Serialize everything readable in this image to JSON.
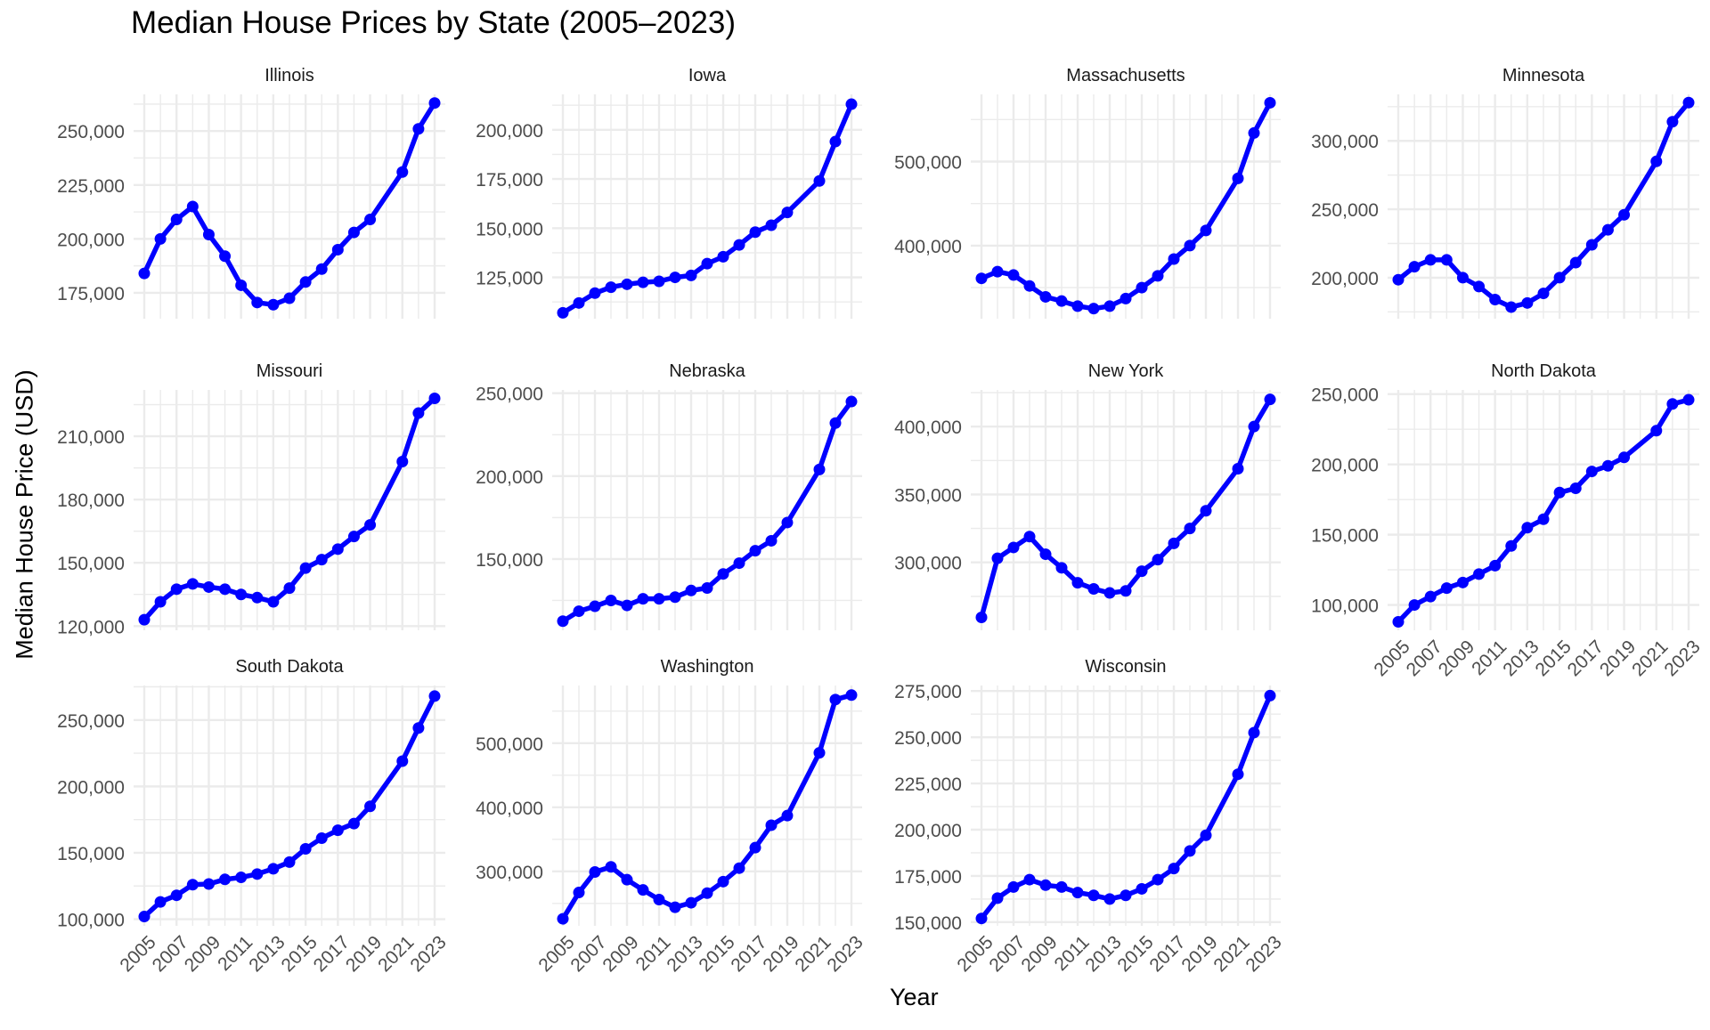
{
  "title": "Median House Prices by State (2005–2023)",
  "xlabel": "Year",
  "ylabel": "Median House Price (USD)",
  "chart_data": {
    "type": "line",
    "title": "Median House Prices by State (2005–2023)",
    "xlabel": "Year",
    "ylabel": "Median House Price (USD)",
    "x_ticks": [
      2005,
      2007,
      2009,
      2011,
      2013,
      2015,
      2017,
      2019,
      2021,
      2023
    ],
    "x": [
      2005,
      2006,
      2007,
      2008,
      2009,
      2010,
      2011,
      2012,
      2013,
      2014,
      2015,
      2016,
      2017,
      2018,
      2019,
      2021,
      2022,
      2023
    ],
    "xlim": [
      2005,
      2023
    ],
    "line_color": "#0000ff",
    "grid": true,
    "facets": [
      {
        "name": "Illinois",
        "ylim": [
          163000,
          267000
        ],
        "yticks": [
          175000,
          200000,
          225000,
          250000
        ],
        "values": [
          184000,
          200000,
          209000,
          215000,
          202000,
          192000,
          178500,
          170500,
          169500,
          172500,
          180000,
          186000,
          195000,
          203000,
          209000,
          231000,
          251000,
          263000
        ]
      },
      {
        "name": "Iowa",
        "ylim": [
          104000,
          218000
        ],
        "yticks": [
          125000,
          150000,
          175000,
          200000
        ],
        "values": [
          107000,
          112000,
          117000,
          120000,
          121500,
          122500,
          123000,
          125000,
          126000,
          132000,
          135500,
          141500,
          148000,
          151500,
          158000,
          174000,
          194000,
          213000
        ]
      },
      {
        "name": "Massachusetts",
        "ylim": [
          313000,
          580000
        ],
        "yticks": [
          400000,
          500000
        ],
        "values": [
          361000,
          369000,
          365000,
          352000,
          339000,
          334000,
          328000,
          325000,
          328000,
          337000,
          350000,
          364000,
          384000,
          400000,
          418000,
          480000,
          534000,
          570000
        ]
      },
      {
        "name": "Minnesota",
        "ylim": [
          170000,
          334000
        ],
        "yticks": [
          200000,
          250000,
          300000
        ],
        "values": [
          198500,
          208000,
          213000,
          213000,
          200000,
          193500,
          184000,
          178500,
          181500,
          188500,
          200000,
          211000,
          224000,
          235000,
          246000,
          285000,
          314000,
          328000
        ]
      },
      {
        "name": "Missouri",
        "ylim": [
          118000,
          232000
        ],
        "yticks": [
          120000,
          150000,
          180000,
          210000
        ],
        "values": [
          123000,
          131500,
          137500,
          140000,
          138500,
          137500,
          135000,
          133500,
          131500,
          138000,
          147500,
          151500,
          156500,
          162500,
          168000,
          198000,
          221000,
          228000
        ]
      },
      {
        "name": "Nebraska",
        "ylim": [
          107000,
          252000
        ],
        "yticks": [
          150000,
          200000,
          250000
        ],
        "values": [
          112500,
          118500,
          121500,
          125000,
          122000,
          126000,
          126000,
          127000,
          131000,
          132500,
          141000,
          147500,
          155000,
          161000,
          172000,
          204000,
          232000,
          245000
        ]
      },
      {
        "name": "New York",
        "ylim": [
          250000,
          427000
        ],
        "yticks": [
          300000,
          350000,
          400000
        ],
        "values": [
          259500,
          303000,
          311000,
          319000,
          306000,
          296000,
          285000,
          280500,
          277500,
          279000,
          293500,
          302000,
          314000,
          325000,
          338000,
          369000,
          400000,
          420000
        ]
      },
      {
        "name": "North Dakota",
        "ylim": [
          82000,
          253000
        ],
        "yticks": [
          100000,
          150000,
          200000,
          250000
        ],
        "values": [
          88000,
          100000,
          106000,
          112000,
          116000,
          122000,
          128000,
          142000,
          155000,
          161000,
          180000,
          183000,
          195000,
          199000,
          205000,
          224000,
          243000,
          246000
        ]
      },
      {
        "name": "South Dakota",
        "ylim": [
          95000,
          276000
        ],
        "yticks": [
          100000,
          150000,
          200000,
          250000
        ],
        "values": [
          102000,
          113000,
          118000,
          126000,
          126500,
          130000,
          131500,
          134000,
          138000,
          143000,
          153000,
          161000,
          167000,
          172000,
          185000,
          219000,
          244000,
          268000
        ]
      },
      {
        "name": "Washington",
        "ylim": [
          215000,
          590000
        ],
        "yticks": [
          300000,
          400000,
          500000
        ],
        "values": [
          226000,
          267000,
          299000,
          307000,
          287000,
          271000,
          256000,
          244000,
          251000,
          266000,
          284000,
          305000,
          337000,
          372000,
          387000,
          485000,
          568000,
          575000
        ]
      },
      {
        "name": "Wisconsin",
        "ylim": [
          148000,
          278000
        ],
        "yticks": [
          150000,
          175000,
          200000,
          225000,
          250000,
          275000
        ],
        "values": [
          152000,
          163000,
          169000,
          173000,
          170000,
          169000,
          166000,
          164500,
          162500,
          164500,
          168000,
          173000,
          179000,
          188500,
          197000,
          230000,
          252500,
          272500
        ]
      }
    ]
  }
}
